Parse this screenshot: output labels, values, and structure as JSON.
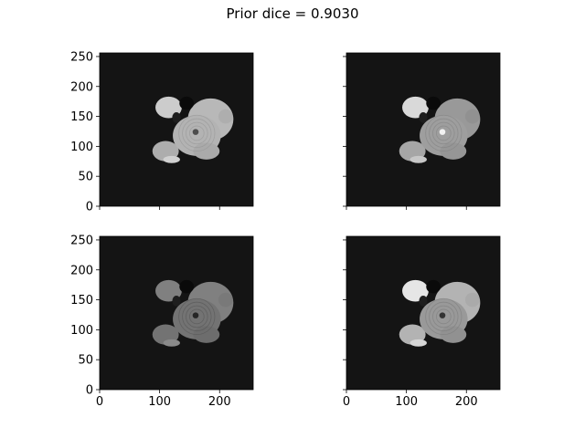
{
  "figure": {
    "suptitle": "Prior dice = 0.9030"
  },
  "chart_data": [
    {
      "type": "heatmap",
      "panel": "top-left",
      "colormap": "gray",
      "background": "#141414",
      "xlim": [
        0,
        256
      ],
      "ylim": [
        0,
        256
      ],
      "xticks": [
        0,
        100,
        200
      ],
      "yticks": [
        0,
        50,
        100,
        150,
        200,
        250
      ],
      "xticklabels_visible": false,
      "yticklabels_visible": true,
      "intensity": {
        "center": 0.7,
        "right_lobe": 0.72,
        "upper_left_lobe": 0.8,
        "lower_left_lobe": 0.68,
        "core": 0.3
      }
    },
    {
      "type": "heatmap",
      "panel": "top-right",
      "colormap": "gray",
      "background": "#141414",
      "xlim": [
        0,
        256
      ],
      "ylim": [
        0,
        256
      ],
      "xticks": [
        0,
        100,
        200
      ],
      "yticks": [
        0,
        50,
        100,
        150,
        200,
        250
      ],
      "xticklabels_visible": false,
      "yticklabels_visible": false,
      "intensity": {
        "center": 0.62,
        "right_lobe": 0.6,
        "upper_left_lobe": 0.85,
        "lower_left_lobe": 0.65,
        "core": 0.95
      }
    },
    {
      "type": "heatmap",
      "panel": "bottom-left",
      "colormap": "gray",
      "background": "#141414",
      "xlim": [
        0,
        256
      ],
      "ylim": [
        0,
        256
      ],
      "xticks": [
        0,
        100,
        200
      ],
      "yticks": [
        0,
        50,
        100,
        150,
        200,
        250
      ],
      "xticklabels_visible": true,
      "yticklabels_visible": true,
      "intensity": {
        "center": 0.45,
        "right_lobe": 0.5,
        "upper_left_lobe": 0.5,
        "lower_left_lobe": 0.45,
        "core": 0.15
      }
    },
    {
      "type": "heatmap",
      "panel": "bottom-right",
      "colormap": "gray",
      "background": "#141414",
      "xlim": [
        0,
        256
      ],
      "ylim": [
        0,
        256
      ],
      "xticks": [
        0,
        100,
        200
      ],
      "yticks": [
        0,
        50,
        100,
        150,
        200,
        250
      ],
      "xticklabels_visible": true,
      "yticklabels_visible": false,
      "intensity": {
        "center": 0.6,
        "right_lobe": 0.7,
        "upper_left_lobe": 0.9,
        "lower_left_lobe": 0.7,
        "core": 0.2
      }
    }
  ]
}
